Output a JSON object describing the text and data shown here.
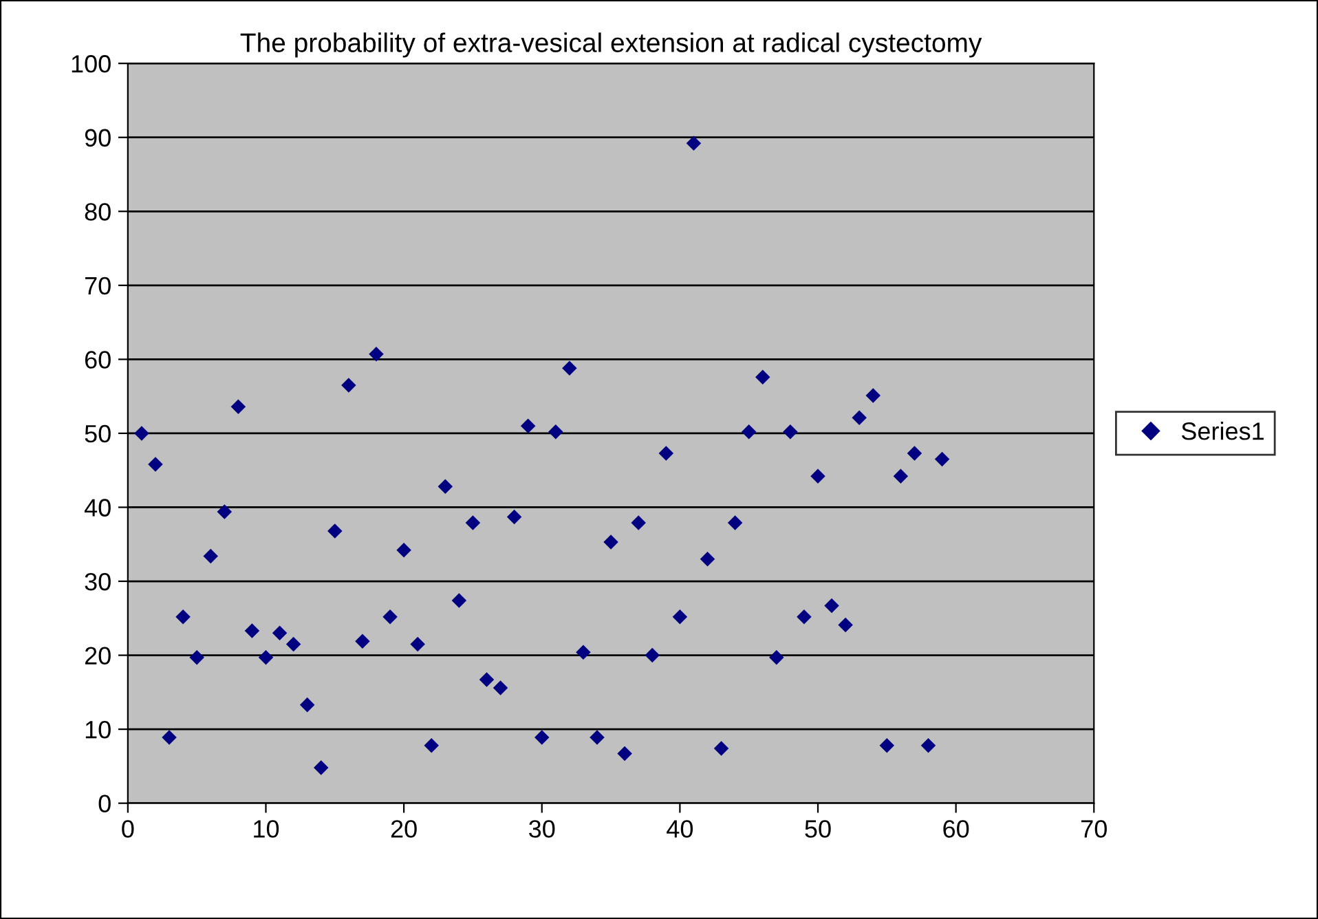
{
  "chart_data": {
    "type": "scatter",
    "title": "The probability of extra-vesical extension at radical cystectomy",
    "x": [
      1,
      2,
      3,
      4,
      5,
      6,
      7,
      8,
      9,
      10,
      11,
      12,
      13,
      14,
      15,
      16,
      17,
      18,
      19,
      20,
      21,
      22,
      23,
      24,
      25,
      26,
      27,
      28,
      29,
      30,
      31,
      32,
      33,
      34,
      35,
      36,
      37,
      38,
      39,
      40,
      41,
      42,
      43,
      44,
      45,
      46,
      47,
      48,
      49,
      50,
      51,
      52,
      53,
      54,
      55,
      56,
      57,
      58,
      59
    ],
    "series": [
      {
        "name": "Series1",
        "color": "#000080",
        "values": [
          50,
          45.8,
          8.9,
          25.2,
          19.7,
          33.4,
          39.4,
          53.6,
          23.3,
          19.7,
          23,
          21.5,
          13.3,
          4.8,
          36.8,
          56.5,
          21.9,
          60.7,
          25.2,
          34.2,
          21.5,
          7.8,
          42.8,
          27.4,
          37.9,
          16.7,
          15.6,
          38.7,
          51,
          8.9,
          50.2,
          58.8,
          20.4,
          8.9,
          35.3,
          6.7,
          37.9,
          20,
          47.3,
          25.2,
          89.2,
          33,
          7.4,
          37.9,
          50.2,
          57.6,
          19.7,
          50.2,
          25.2,
          44.2,
          26.7,
          24.1,
          52.1,
          55.1,
          7.8,
          44.2,
          47.3,
          7.8,
          46.5
        ]
      }
    ],
    "xlim": [
      0,
      70
    ],
    "xticks": [
      0,
      10,
      20,
      30,
      40,
      50,
      60,
      70
    ],
    "ylim": [
      0,
      100
    ],
    "yticks": [
      0,
      10,
      20,
      30,
      40,
      50,
      60,
      70,
      80,
      90,
      100
    ],
    "grid": "y",
    "legend": "right",
    "marker": "diamond"
  }
}
